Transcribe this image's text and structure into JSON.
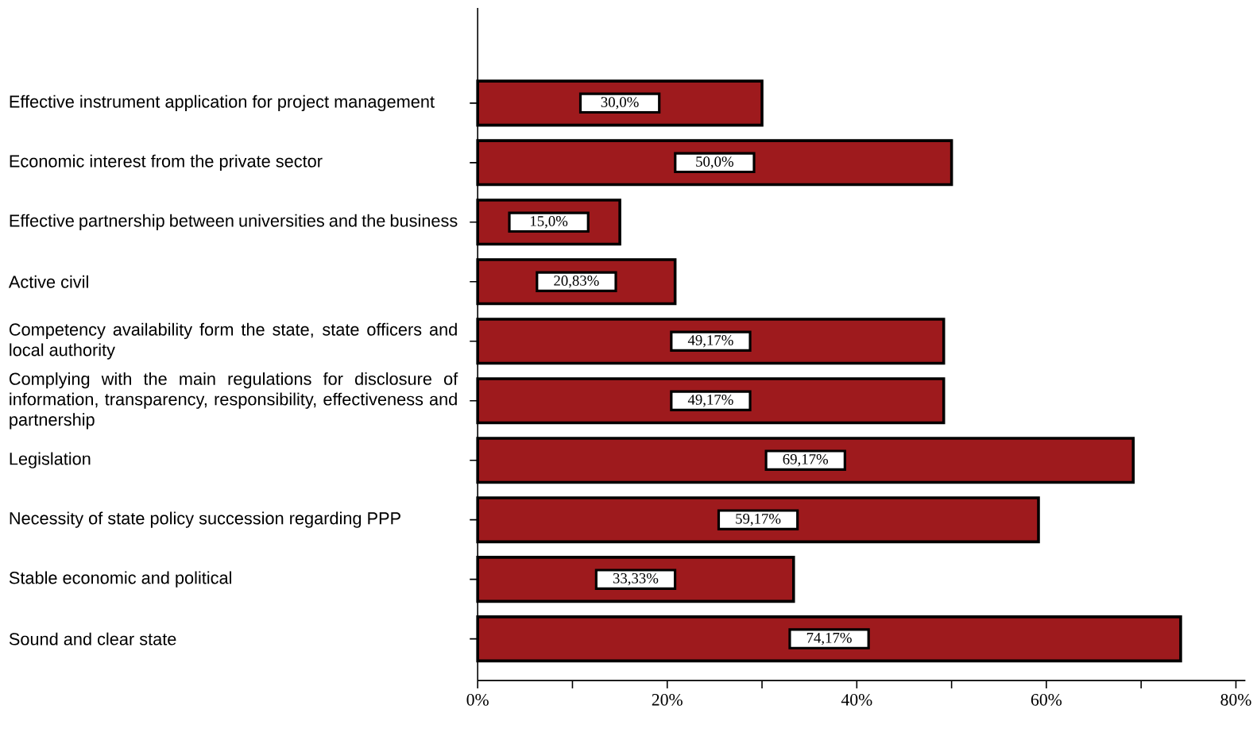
{
  "chart_data": {
    "type": "bar",
    "orientation": "horizontal",
    "categories": [
      "Effective instrument application for project management",
      "Economic interest from the private sector",
      "Effective partnership between universities and the business",
      "Active civil",
      "Competency availability form the state, state officers and local authority",
      "Complying with the main regulations for disclosure of information, transparency, responsibility, effectiveness and partnership",
      "Legislation",
      "Necessity of state policy succession regarding PPP",
      "Stable economic and political",
      "Sound and clear state"
    ],
    "values": [
      30.0,
      50.0,
      15.0,
      20.83,
      49.17,
      49.17,
      69.17,
      59.17,
      33.33,
      74.17
    ],
    "value_labels": [
      "30,0%",
      "50,0%",
      "15,0%",
      "20,83%",
      "49,17%",
      "49,17%",
      "69,17%",
      "59,17%",
      "33,33%",
      "74,17%"
    ],
    "color": "#9e1a1d",
    "xlim": [
      0,
      81
    ],
    "xticks": [
      {
        "value": 0,
        "label": "0%"
      },
      {
        "value": 10,
        "label": null
      },
      {
        "value": 20,
        "label": "20%"
      },
      {
        "value": 30,
        "label": null
      },
      {
        "value": 40,
        "label": "40%"
      },
      {
        "value": 50,
        "label": null
      },
      {
        "value": 60,
        "label": "60%"
      },
      {
        "value": 70,
        "label": null
      },
      {
        "value": 80,
        "label": "80%"
      }
    ]
  }
}
